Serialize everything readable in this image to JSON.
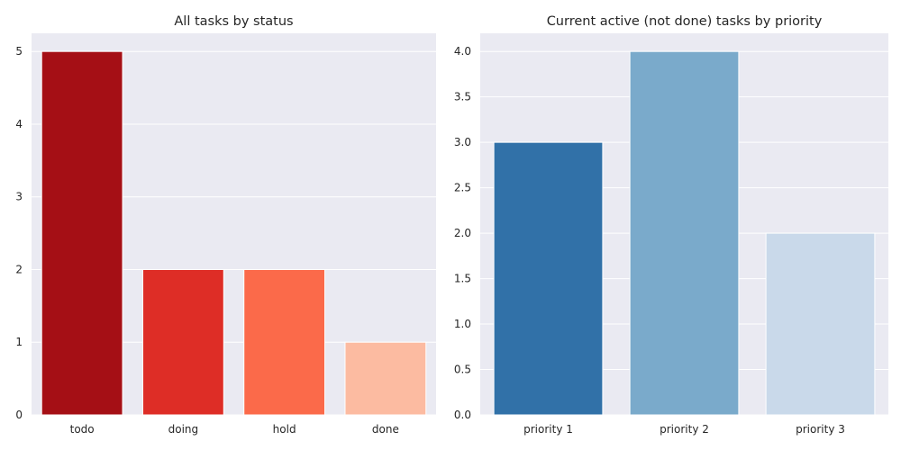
{
  "chart_data": [
    {
      "type": "bar",
      "title": "All tasks by status",
      "xlabel": "",
      "ylabel": "",
      "categories": [
        "todo",
        "doing",
        "hold",
        "done"
      ],
      "values": [
        5,
        2,
        2,
        1
      ],
      "colors": [
        "#a50f15",
        "#de2d26",
        "#fb6a4a",
        "#fcbba1"
      ],
      "ylim": [
        0,
        5.25
      ],
      "yticks": [
        0,
        1,
        2,
        3,
        4,
        5
      ],
      "ytick_labels": [
        "0",
        "1",
        "2",
        "3",
        "4",
        "5"
      ],
      "grid": true,
      "background": "#eaeaf2"
    },
    {
      "type": "bar",
      "title": "Current active (not done) tasks by priority",
      "xlabel": "",
      "ylabel": "",
      "categories": [
        "priority 1",
        "priority 2",
        "priority 3"
      ],
      "values": [
        3,
        4,
        2
      ],
      "colors": [
        "#3171a8",
        "#7aaacb",
        "#c9d9ea"
      ],
      "ylim": [
        0,
        4.2
      ],
      "yticks": [
        0,
        0.5,
        1,
        1.5,
        2,
        2.5,
        3,
        3.5,
        4
      ],
      "ytick_labels": [
        "0.0",
        "0.5",
        "1.0",
        "1.5",
        "2.0",
        "2.5",
        "3.0",
        "3.5",
        "4.0"
      ],
      "grid": true,
      "background": "#eaeaf2"
    }
  ]
}
